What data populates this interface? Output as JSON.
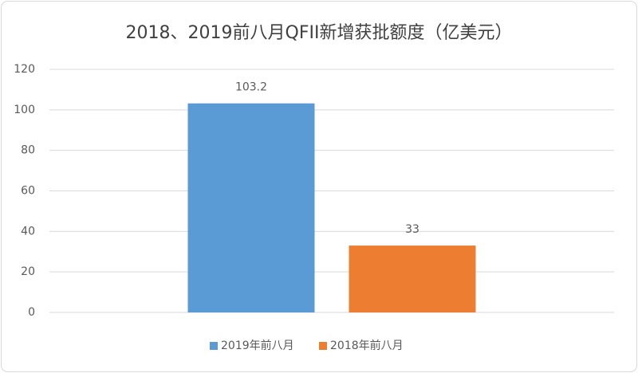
{
  "chart_data": {
    "type": "bar",
    "title": "2018、2019前八月QFII新增获批额度（亿美元）",
    "categories": [
      null
    ],
    "series": [
      {
        "name": "2019年前八月",
        "color": "#5b9bd5",
        "values": [
          103.2
        ]
      },
      {
        "name": "2018年前八月",
        "color": "#ed7d31",
        "values": [
          33
        ]
      }
    ],
    "ylim": [
      0,
      120
    ],
    "yticks": [
      0,
      20,
      40,
      60,
      80,
      100,
      120
    ],
    "grid": true,
    "legend": "bottom"
  }
}
